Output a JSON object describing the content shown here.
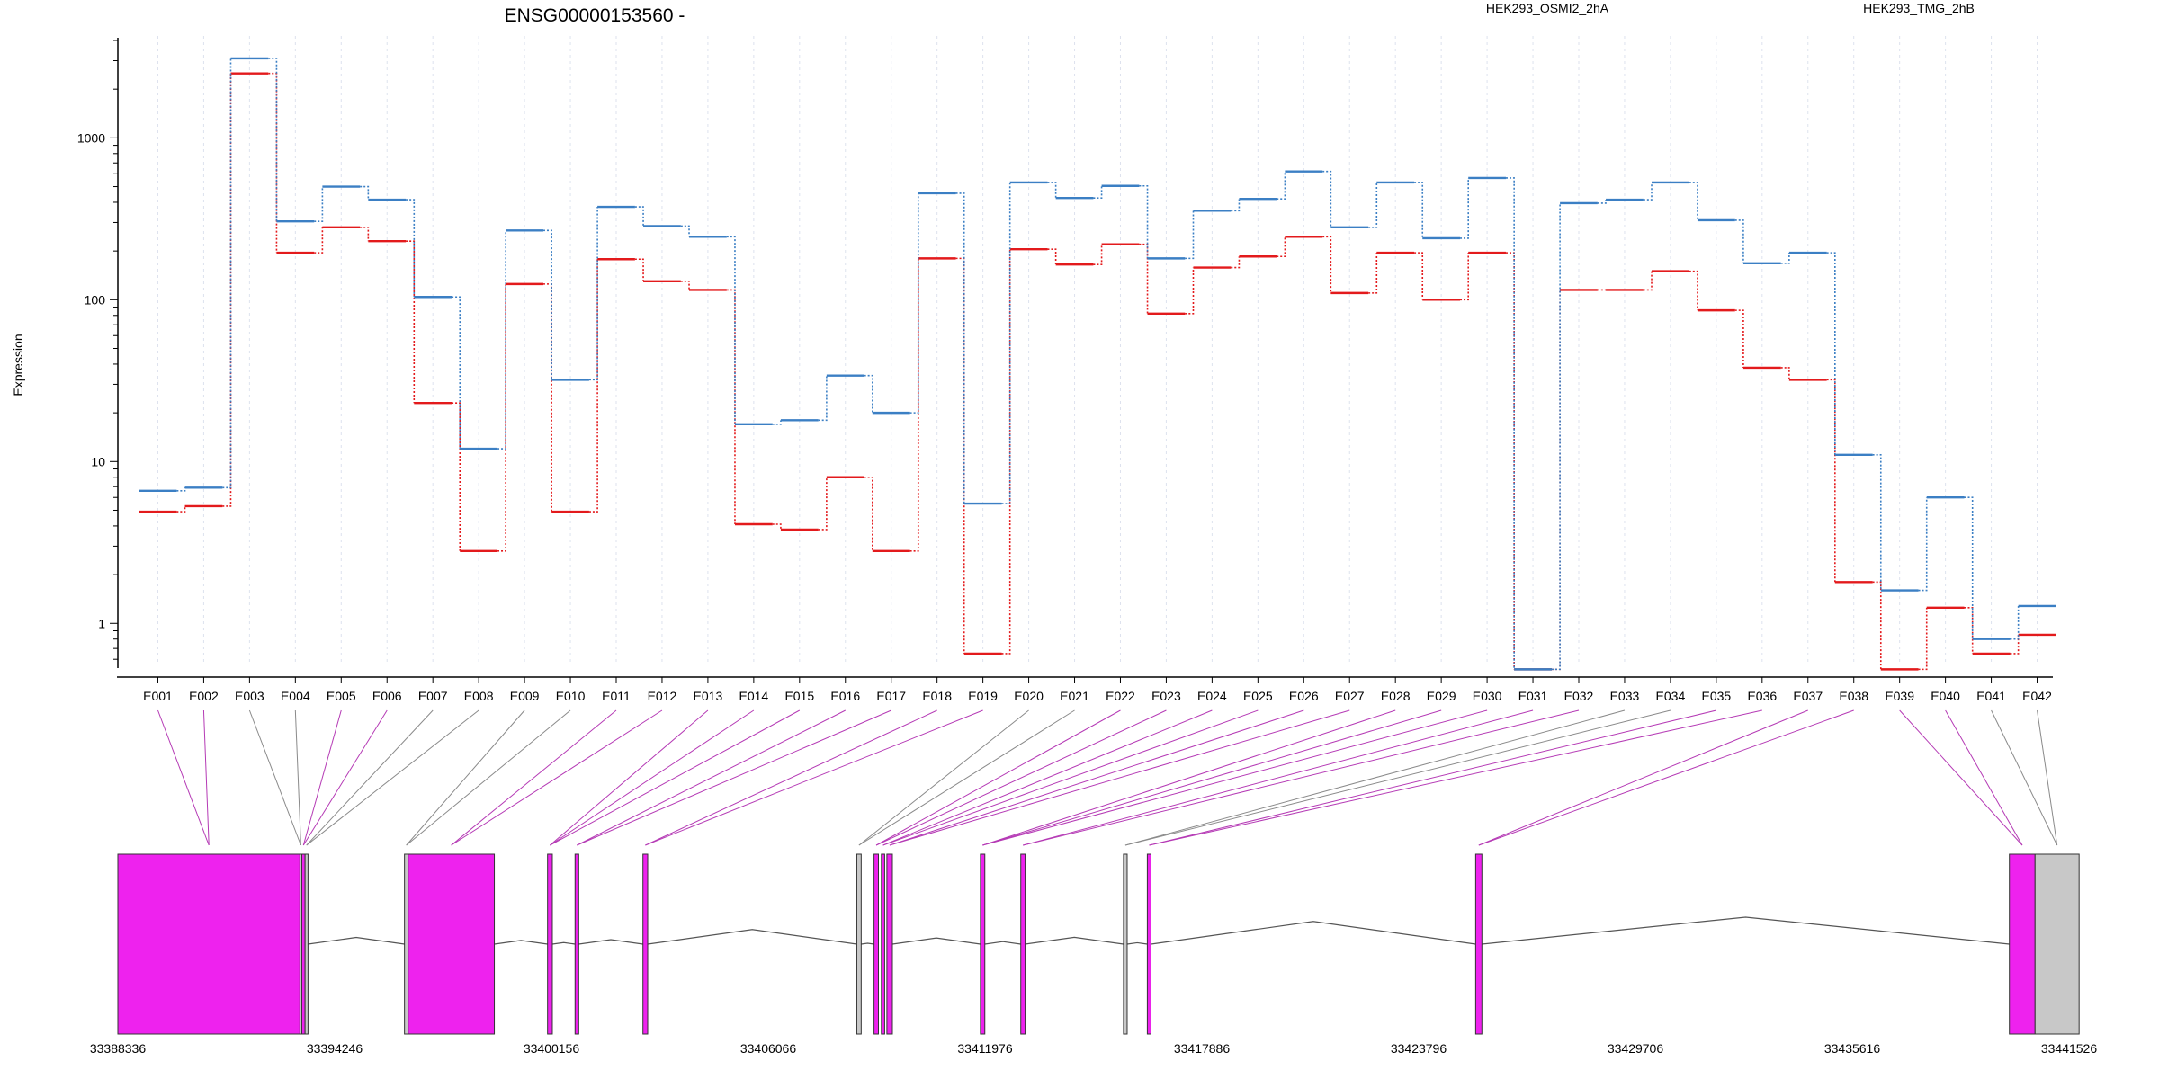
{
  "chart_data": {
    "type": "line",
    "title": "ENSG00000153560 -",
    "ylabel": "Expression",
    "yscale": "log",
    "ylim": [
      0.55,
      4000
    ],
    "yticks": [
      1,
      10,
      100,
      1000
    ],
    "ytick_labels": [
      "1",
      "10",
      "100",
      "1000"
    ],
    "categories": [
      "E001",
      "E002",
      "E003",
      "E004",
      "E005",
      "E006",
      "E007",
      "E008",
      "E009",
      "E010",
      "E011",
      "E012",
      "E013",
      "E014",
      "E015",
      "E016",
      "E017",
      "E018",
      "E019",
      "E020",
      "E021",
      "E022",
      "E023",
      "E024",
      "E025",
      "E026",
      "E027",
      "E028",
      "E029",
      "E030",
      "E031",
      "E032",
      "E033",
      "E034",
      "E035",
      "E036",
      "E037",
      "E038",
      "E039",
      "E040",
      "E041",
      "E042"
    ],
    "series": [
      {
        "name": "HEK293_OSMI2_2hA",
        "color": "#e31a1c",
        "values": [
          4.9,
          5.3,
          2500,
          195,
          280,
          230,
          23,
          2.8,
          125,
          4.9,
          178,
          130,
          115,
          4.1,
          3.8,
          8,
          2.8,
          180,
          0.65,
          205,
          165,
          220,
          82,
          158,
          185,
          245,
          110,
          195,
          100,
          195,
          0.52,
          115,
          115,
          150,
          86,
          38,
          32,
          1.8,
          0.52,
          1.25,
          0.65,
          0.85
        ]
      },
      {
        "name": "HEK293_TMG_2hB",
        "color": "#3b7fc4",
        "values": [
          6.6,
          6.9,
          3100,
          305,
          500,
          415,
          104,
          12,
          268,
          32,
          375,
          285,
          245,
          17,
          18,
          34,
          20,
          455,
          5.5,
          530,
          425,
          505,
          180,
          355,
          420,
          620,
          280,
          530,
          240,
          565,
          0.52,
          395,
          415,
          530,
          310,
          168,
          195,
          11,
          1.6,
          6,
          0.8,
          1.28
        ]
      }
    ],
    "gene_model": {
      "coordinate_labels": [
        "33388336",
        "33394246",
        "33400156",
        "33406066",
        "33411976",
        "33417886",
        "33423796",
        "33429706",
        "33435616",
        "33441526"
      ],
      "exon_colors": {
        "differential": "#ee22ee",
        "other": "#c8c8c8"
      },
      "exon_blocks": [
        {
          "start": 33388336,
          "end": 33393300,
          "highlight": true
        },
        {
          "start": 33393300,
          "end": 33393350,
          "highlight": false
        },
        {
          "start": 33393350,
          "end": 33393440,
          "highlight": true
        },
        {
          "start": 33393440,
          "end": 33393520,
          "highlight": false
        },
        {
          "start": 33396150,
          "end": 33396250,
          "highlight": false
        },
        {
          "start": 33396250,
          "end": 33398600,
          "highlight": true
        },
        {
          "start": 33400050,
          "end": 33400180,
          "highlight": true
        },
        {
          "start": 33400800,
          "end": 33400900,
          "highlight": true
        },
        {
          "start": 33402650,
          "end": 33402780,
          "highlight": true
        },
        {
          "start": 33408480,
          "end": 33408600,
          "highlight": false
        },
        {
          "start": 33408950,
          "end": 33409070,
          "highlight": true
        },
        {
          "start": 33409150,
          "end": 33409240,
          "highlight": true
        },
        {
          "start": 33409300,
          "end": 33409450,
          "highlight": true
        },
        {
          "start": 33411850,
          "end": 33411970,
          "highlight": true
        },
        {
          "start": 33412950,
          "end": 33413070,
          "highlight": true
        },
        {
          "start": 33415750,
          "end": 33415850,
          "highlight": false
        },
        {
          "start": 33416400,
          "end": 33416500,
          "highlight": true
        },
        {
          "start": 33425350,
          "end": 33425520,
          "highlight": true
        },
        {
          "start": 33439900,
          "end": 33440600,
          "highlight": true
        },
        {
          "start": 33440600,
          "end": 33441800,
          "highlight": false
        }
      ]
    }
  }
}
